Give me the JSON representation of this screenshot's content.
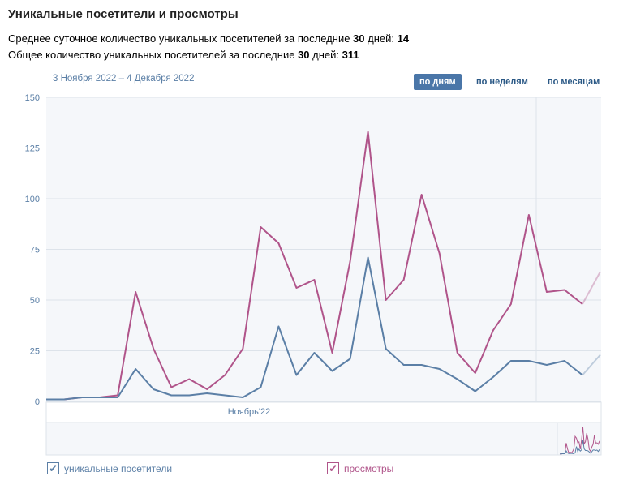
{
  "title": "Уникальные посетители и просмотры",
  "stats": [
    {
      "text": "Среднее суточное количество уникальных посетителей за последние ",
      "bold1": "30",
      "mid": " дней: ",
      "bold2": "14"
    },
    {
      "text": "Общее количество уникальных посетителей за последние ",
      "bold1": "30",
      "mid": " дней: ",
      "bold2": "311"
    }
  ],
  "date_range": "3 Ноября 2022 – 4 Декабря 2022",
  "period_buttons": [
    {
      "label": "по дням",
      "active": true
    },
    {
      "label": "по неделям",
      "active": false
    },
    {
      "label": "по месяцам",
      "active": false
    }
  ],
  "chart_data": {
    "type": "line",
    "x_label": "Ноябрь'22",
    "x_start": "2022-11-03",
    "x_end": "2022-12-04",
    "ylim": [
      0,
      150
    ],
    "yticks": [
      0,
      25,
      50,
      75,
      100,
      125,
      150
    ],
    "grid": true,
    "legend_placement": "bottom",
    "series": [
      {
        "name": "уникальные посетители",
        "color": "#5b7fa6",
        "values": [
          1,
          1,
          2,
          2,
          2,
          16,
          6,
          3,
          3,
          4,
          3,
          2,
          7,
          37,
          13,
          24,
          15,
          21,
          71,
          26,
          18,
          18,
          16,
          11,
          5,
          12,
          20,
          20,
          18,
          20,
          13,
          23
        ]
      },
      {
        "name": "просмотры",
        "color": "#b0548a",
        "values": [
          1,
          1,
          2,
          2,
          3,
          54,
          26,
          7,
          11,
          6,
          13,
          26,
          86,
          78,
          56,
          60,
          24,
          69,
          133,
          50,
          60,
          102,
          73,
          24,
          14,
          35,
          48,
          92,
          54,
          55,
          48,
          64
        ]
      }
    ]
  }
}
